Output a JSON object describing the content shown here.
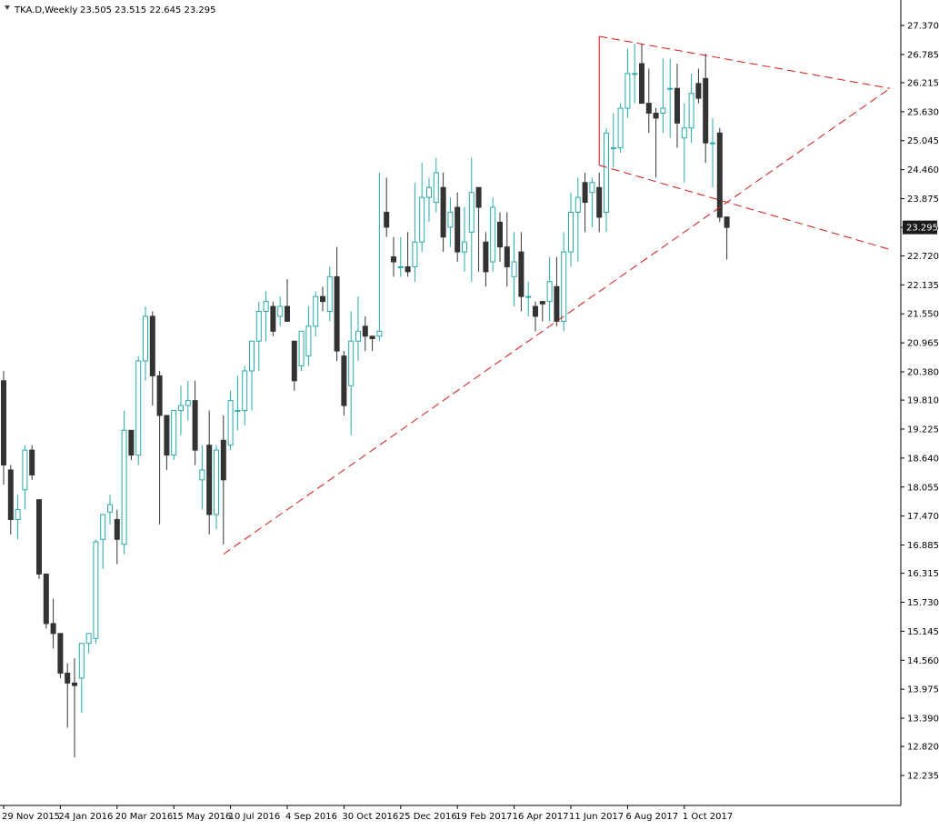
{
  "header": {
    "symbol_tf": "TKA.D,Weekly",
    "ohlc": "23.505 23.515 22.645 23.295"
  },
  "colors": {
    "bull": "#2aa9a9",
    "bear": "#333333",
    "trendline": "#d11a1a",
    "axis": "#000000",
    "price_tag_bg": "#1a1a1a"
  },
  "chart_data": {
    "type": "candlestick",
    "title": "",
    "xlabel": "",
    "ylabel": "",
    "ylim": [
      12.235,
      27.66
    ],
    "yticks": [
      27.37,
      26.785,
      26.215,
      25.63,
      25.045,
      24.46,
      23.875,
      23.295,
      22.72,
      22.135,
      21.55,
      20.965,
      20.38,
      19.81,
      19.225,
      18.64,
      18.055,
      17.47,
      16.885,
      16.315,
      15.73,
      15.145,
      14.56,
      13.975,
      13.39,
      12.82,
      12.235
    ],
    "ytick_labels": [
      "27.370",
      "26.785",
      "26.215",
      "25.630",
      "25.045",
      "24.460",
      "23.875",
      "23.295",
      "22.720",
      "22.135",
      "21.550",
      "20.965",
      "20.380",
      "19.810",
      "19.225",
      "18.640",
      "18.055",
      "17.470",
      "16.885",
      "16.315",
      "15.730",
      "15.145",
      "14.560",
      "13.975",
      "13.390",
      "12.820",
      "12.235"
    ],
    "x_tick_labels": [
      {
        "label": "29 Nov 2015",
        "index": 0
      },
      {
        "label": "24 Jan 2016",
        "index": 8
      },
      {
        "label": "20 Mar 2016",
        "index": 16
      },
      {
        "label": "15 May 2016",
        "index": 24
      },
      {
        "label": "10 Jul 2016",
        "index": 32
      },
      {
        "label": "4 Sep 2016",
        "index": 40
      },
      {
        "label": "30 Oct 2016",
        "index": 48
      },
      {
        "label": "25 Dec 2016",
        "index": 56
      },
      {
        "label": "19 Feb 2017",
        "index": 64
      },
      {
        "label": "16 Apr 2017",
        "index": 72
      },
      {
        "label": "11 Jun 2017",
        "index": 80
      },
      {
        "label": "6 Aug 2017",
        "index": 88
      },
      {
        "label": "1 Oct 2017",
        "index": 96
      }
    ],
    "current_price": 23.295,
    "current_price_label": "23.295",
    "candles": [
      {
        "o": 20.2,
        "h": 20.4,
        "l": 18.1,
        "c": 18.5
      },
      {
        "o": 18.4,
        "h": 18.5,
        "l": 17.1,
        "c": 17.4
      },
      {
        "o": 17.4,
        "h": 17.9,
        "l": 17.0,
        "c": 17.6
      },
      {
        "o": 18.0,
        "h": 18.9,
        "l": 17.6,
        "c": 18.8
      },
      {
        "o": 18.8,
        "h": 18.9,
        "l": 18.2,
        "c": 18.3
      },
      {
        "o": 17.8,
        "h": 17.8,
        "l": 16.2,
        "c": 16.3
      },
      {
        "o": 16.3,
        "h": 16.3,
        "l": 15.2,
        "c": 15.3
      },
      {
        "o": 15.3,
        "h": 15.8,
        "l": 14.8,
        "c": 15.1
      },
      {
        "o": 15.1,
        "h": 15.1,
        "l": 14.2,
        "c": 14.3
      },
      {
        "o": 14.3,
        "h": 14.5,
        "l": 13.2,
        "c": 14.1
      },
      {
        "o": 14.1,
        "h": 14.6,
        "l": 12.6,
        "c": 14.05
      },
      {
        "o": 14.2,
        "h": 14.9,
        "l": 13.5,
        "c": 14.9
      },
      {
        "o": 14.9,
        "h": 15.1,
        "l": 14.7,
        "c": 15.1
      },
      {
        "o": 15.0,
        "h": 17.0,
        "l": 14.9,
        "c": 16.95
      },
      {
        "o": 17.0,
        "h": 17.5,
        "l": 16.4,
        "c": 17.5
      },
      {
        "o": 17.55,
        "h": 17.9,
        "l": 17.3,
        "c": 17.7
      },
      {
        "o": 17.4,
        "h": 17.6,
        "l": 16.5,
        "c": 17.0
      },
      {
        "o": 16.9,
        "h": 19.6,
        "l": 16.7,
        "c": 19.2
      },
      {
        "o": 19.2,
        "h": 19.2,
        "l": 18.6,
        "c": 18.7
      },
      {
        "o": 18.7,
        "h": 20.7,
        "l": 18.5,
        "c": 20.6
      },
      {
        "o": 20.6,
        "h": 21.7,
        "l": 20.2,
        "c": 21.5
      },
      {
        "o": 21.5,
        "h": 21.6,
        "l": 19.7,
        "c": 20.3
      },
      {
        "o": 20.3,
        "h": 20.4,
        "l": 17.3,
        "c": 19.5
      },
      {
        "o": 19.5,
        "h": 19.5,
        "l": 18.4,
        "c": 18.7
      },
      {
        "o": 18.7,
        "h": 19.6,
        "l": 18.6,
        "c": 19.6
      },
      {
        "o": 19.6,
        "h": 20.1,
        "l": 19.1,
        "c": 19.7
      },
      {
        "o": 19.7,
        "h": 20.2,
        "l": 19.4,
        "c": 19.8
      },
      {
        "o": 19.8,
        "h": 20.2,
        "l": 18.5,
        "c": 18.8
      },
      {
        "o": 18.2,
        "h": 18.9,
        "l": 17.6,
        "c": 18.4
      },
      {
        "o": 18.9,
        "h": 19.6,
        "l": 17.1,
        "c": 17.5
      },
      {
        "o": 17.5,
        "h": 18.9,
        "l": 17.2,
        "c": 18.8
      },
      {
        "o": 19.0,
        "h": 19.5,
        "l": 16.9,
        "c": 18.2
      },
      {
        "o": 18.9,
        "h": 20.0,
        "l": 18.8,
        "c": 19.8
      },
      {
        "o": 19.6,
        "h": 20.3,
        "l": 19.2,
        "c": 19.6
      },
      {
        "o": 19.6,
        "h": 20.5,
        "l": 19.3,
        "c": 20.4
      },
      {
        "o": 20.4,
        "h": 21.0,
        "l": 19.6,
        "c": 21.0
      },
      {
        "o": 21.0,
        "h": 21.8,
        "l": 20.4,
        "c": 21.6
      },
      {
        "o": 21.6,
        "h": 22.0,
        "l": 21.0,
        "c": 21.8
      },
      {
        "o": 21.7,
        "h": 21.8,
        "l": 21.1,
        "c": 21.2
      },
      {
        "o": 21.5,
        "h": 21.9,
        "l": 21.3,
        "c": 21.7
      },
      {
        "o": 21.7,
        "h": 22.25,
        "l": 21.4,
        "c": 21.4
      },
      {
        "o": 21.0,
        "h": 21.0,
        "l": 20.0,
        "c": 20.2
      },
      {
        "o": 20.5,
        "h": 21.2,
        "l": 20.4,
        "c": 21.2
      },
      {
        "o": 20.7,
        "h": 21.7,
        "l": 20.5,
        "c": 21.3
      },
      {
        "o": 21.3,
        "h": 22.0,
        "l": 21.1,
        "c": 21.9
      },
      {
        "o": 21.9,
        "h": 22.1,
        "l": 21.6,
        "c": 21.8
      },
      {
        "o": 21.6,
        "h": 22.5,
        "l": 21.4,
        "c": 22.3
      },
      {
        "o": 22.3,
        "h": 22.9,
        "l": 20.6,
        "c": 20.8
      },
      {
        "o": 20.7,
        "h": 20.8,
        "l": 19.5,
        "c": 19.7
      },
      {
        "o": 20.1,
        "h": 21.6,
        "l": 19.1,
        "c": 21.0
      },
      {
        "o": 21.0,
        "h": 21.9,
        "l": 20.6,
        "c": 21.2
      },
      {
        "o": 21.3,
        "h": 21.5,
        "l": 20.8,
        "c": 21.1
      },
      {
        "o": 21.1,
        "h": 21.1,
        "l": 20.8,
        "c": 21.05
      },
      {
        "o": 21.1,
        "h": 24.4,
        "l": 21.0,
        "c": 21.2
      },
      {
        "o": 23.6,
        "h": 24.3,
        "l": 23.1,
        "c": 23.3
      },
      {
        "o": 22.7,
        "h": 23.1,
        "l": 22.3,
        "c": 22.6
      },
      {
        "o": 22.5,
        "h": 23.1,
        "l": 22.3,
        "c": 22.5
      },
      {
        "o": 22.5,
        "h": 23.2,
        "l": 22.3,
        "c": 22.4
      },
      {
        "o": 22.5,
        "h": 24.2,
        "l": 22.2,
        "c": 23.0
      },
      {
        "o": 23.0,
        "h": 24.6,
        "l": 22.8,
        "c": 23.9
      },
      {
        "o": 23.9,
        "h": 24.3,
        "l": 23.4,
        "c": 24.1
      },
      {
        "o": 23.8,
        "h": 24.7,
        "l": 23.6,
        "c": 24.4
      },
      {
        "o": 24.1,
        "h": 24.4,
        "l": 22.8,
        "c": 23.1
      },
      {
        "o": 23.3,
        "h": 23.9,
        "l": 22.9,
        "c": 23.6
      },
      {
        "o": 23.7,
        "h": 24.0,
        "l": 22.6,
        "c": 22.8
      },
      {
        "o": 22.8,
        "h": 23.7,
        "l": 22.4,
        "c": 23.0
      },
      {
        "o": 23.2,
        "h": 24.7,
        "l": 22.2,
        "c": 24.0
      },
      {
        "o": 24.1,
        "h": 24.1,
        "l": 22.4,
        "c": 23.7
      },
      {
        "o": 23.0,
        "h": 23.2,
        "l": 22.1,
        "c": 22.4
      },
      {
        "o": 22.6,
        "h": 23.9,
        "l": 22.4,
        "c": 23.7
      },
      {
        "o": 23.4,
        "h": 23.6,
        "l": 22.6,
        "c": 22.9
      },
      {
        "o": 22.9,
        "h": 23.6,
        "l": 22.1,
        "c": 22.5
      },
      {
        "o": 22.3,
        "h": 23.2,
        "l": 21.7,
        "c": 22.6
      },
      {
        "o": 22.8,
        "h": 23.2,
        "l": 21.6,
        "c": 21.9
      },
      {
        "o": 21.9,
        "h": 22.2,
        "l": 21.5,
        "c": 21.9
      },
      {
        "o": 21.7,
        "h": 21.8,
        "l": 21.2,
        "c": 21.5
      },
      {
        "o": 21.8,
        "h": 21.8,
        "l": 21.4,
        "c": 21.75
      },
      {
        "o": 21.8,
        "h": 22.7,
        "l": 21.4,
        "c": 22.2
      },
      {
        "o": 22.1,
        "h": 22.7,
        "l": 21.3,
        "c": 21.4
      },
      {
        "o": 21.4,
        "h": 23.2,
        "l": 21.2,
        "c": 22.8
      },
      {
        "o": 22.8,
        "h": 24.0,
        "l": 22.5,
        "c": 23.6
      },
      {
        "o": 23.6,
        "h": 24.3,
        "l": 22.6,
        "c": 23.9
      },
      {
        "o": 24.2,
        "h": 24.4,
        "l": 23.2,
        "c": 23.8
      },
      {
        "o": 24.0,
        "h": 24.3,
        "l": 23.3,
        "c": 24.2
      },
      {
        "o": 24.1,
        "h": 24.4,
        "l": 23.2,
        "c": 23.5
      },
      {
        "o": 23.6,
        "h": 25.3,
        "l": 23.2,
        "c": 25.2
      },
      {
        "o": 24.9,
        "h": 25.6,
        "l": 24.5,
        "c": 24.9
      },
      {
        "o": 24.9,
        "h": 25.8,
        "l": 24.8,
        "c": 25.7
      },
      {
        "o": 25.7,
        "h": 26.9,
        "l": 25.5,
        "c": 26.4
      },
      {
        "o": 26.4,
        "h": 27.0,
        "l": 25.8,
        "c": 26.4
      },
      {
        "o": 26.6,
        "h": 27.0,
        "l": 25.8,
        "c": 25.8
      },
      {
        "o": 25.8,
        "h": 26.5,
        "l": 25.2,
        "c": 25.6
      },
      {
        "o": 25.6,
        "h": 25.7,
        "l": 24.3,
        "c": 25.5
      },
      {
        "o": 25.6,
        "h": 26.7,
        "l": 25.2,
        "c": 25.7
      },
      {
        "o": 26.1,
        "h": 26.7,
        "l": 25.1,
        "c": 26.1
      },
      {
        "o": 26.1,
        "h": 26.6,
        "l": 24.9,
        "c": 25.4
      },
      {
        "o": 25.1,
        "h": 25.8,
        "l": 24.2,
        "c": 25.3
      },
      {
        "o": 25.3,
        "h": 26.4,
        "l": 25.0,
        "c": 26.0
      },
      {
        "o": 26.2,
        "h": 26.5,
        "l": 25.8,
        "c": 25.9
      },
      {
        "o": 26.3,
        "h": 26.8,
        "l": 24.6,
        "c": 25.0
      },
      {
        "o": 25.0,
        "h": 25.5,
        "l": 24.1,
        "c": 25.0
      },
      {
        "o": 25.2,
        "h": 25.3,
        "l": 23.4,
        "c": 23.5
      },
      {
        "o": 23.505,
        "h": 23.515,
        "l": 22.645,
        "c": 23.295
      }
    ],
    "trendlines": [
      {
        "from": {
          "index": 31,
          "price": 16.7
        },
        "to": {
          "index": 125,
          "price": 26.1
        },
        "style": "dashed"
      },
      {
        "from": {
          "index": 84,
          "price": 27.15
        },
        "to": {
          "index": 125,
          "price": 26.1
        },
        "style": "dashed"
      },
      {
        "from": {
          "index": 84,
          "price": 24.55
        },
        "to": {
          "index": 125,
          "price": 22.85
        },
        "style": "dashed"
      },
      {
        "from": {
          "index": 84,
          "price": 24.55
        },
        "to": {
          "index": 84,
          "price": 27.15
        },
        "style": "solid"
      }
    ]
  }
}
